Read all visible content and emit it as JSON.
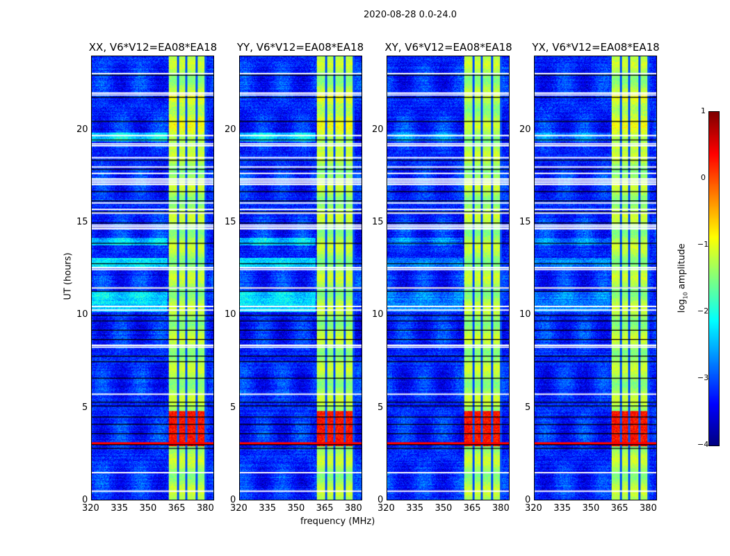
{
  "chart_data": {
    "type": "heatmap",
    "title": "2020-08-28 0.0-24.0",
    "xlabel": "frequency (MHz)",
    "ylabel": "UT (hours)",
    "xlim": [
      320,
      384.4
    ],
    "ylim": [
      0,
      24
    ],
    "xticks": [
      "320",
      "335",
      "350",
      "365",
      "380"
    ],
    "xtick_values": [
      320,
      335,
      350,
      365,
      380
    ],
    "yticks": [
      "0",
      "5",
      "10",
      "15",
      "20"
    ],
    "ytick_values": [
      0,
      5,
      10,
      15,
      20
    ],
    "panels": [
      {
        "title": "XX, V6*V12=EA08*EA18"
      },
      {
        "title": "YY, V6*V12=EA08*EA18"
      },
      {
        "title": "XY, V6*V12=EA08*EA18"
      },
      {
        "title": "YX, V6*V12=EA08*EA18"
      }
    ],
    "colorbar": {
      "label": "log10 amplitude",
      "label_main": "log",
      "label_sub": "10",
      "label_rest": " amplitude",
      "colormap": "jet",
      "range": [
        -4,
        1
      ],
      "ticks": [
        "1",
        "0",
        "−1",
        "−2",
        "−3",
        "−4"
      ],
      "tick_values": [
        1,
        0,
        -1,
        -2,
        -3,
        -4
      ]
    },
    "features": {
      "background_level": -3.2,
      "rfi_band_mhz": [
        360.7,
        380.4
      ],
      "rfi_band_level": -1.3,
      "band_gaps_mhz": [
        365.5,
        369.8,
        375.3,
        380.0
      ],
      "strong_rfi_hours": [
        2.9,
        4.8
      ],
      "strong_rfi_level": 0.3,
      "flagged_hours": [
        23.1,
        22.05,
        21.95,
        19.75,
        19.3,
        19.2,
        18.55,
        18.05,
        17.7,
        17.4,
        17.3,
        17.2,
        17.1,
        16.1,
        15.75,
        15.55,
        14.9,
        14.8,
        14.7,
        12.6,
        12.5,
        11.5,
        10.5,
        10.3,
        8.4,
        8.3,
        5.75,
        1.5,
        0.5
      ],
      "low_hours": [
        23.0,
        21.8,
        20.5,
        19.5,
        18.4,
        17.9,
        16.7,
        16.2,
        15.6,
        15.0,
        13.9,
        12.8,
        11.5,
        11.3,
        10.0,
        9.7,
        9.2,
        8.7,
        7.8,
        7.5,
        6.6,
        5.3,
        5.1,
        4.5,
        4.1,
        3.6,
        3.0,
        2.8
      ],
      "enhanced_hours": [
        [
          19.4,
          19.9
        ],
        [
          10.2,
          11.3
        ],
        [
          12.6,
          13.1
        ],
        [
          13.8,
          14.2
        ]
      ]
    }
  }
}
